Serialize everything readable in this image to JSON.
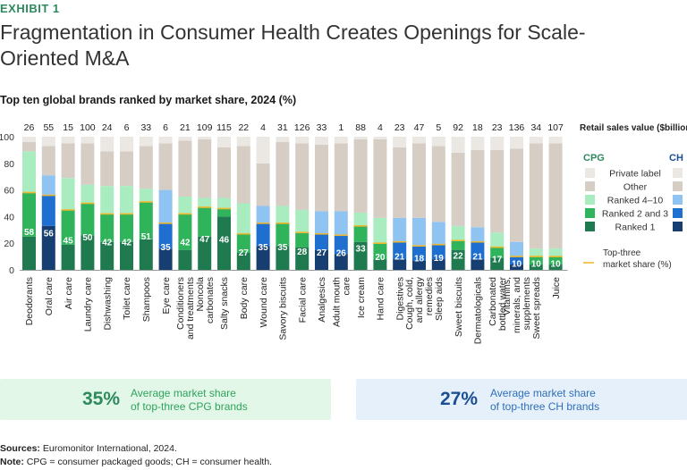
{
  "exhibit": "EXHIBIT 1",
  "title": "Fragmentation in Consumer Health Creates Openings for Scale-Oriented M&A",
  "subtitle": "Top ten global brands ranked by market share, 2024 (%)",
  "colors": {
    "private_label": "#ebe8e3",
    "other": "#d6cdc5",
    "cpg_r410": "#a9ecbf",
    "cpg_r23": "#2fb45c",
    "cpg_r1": "#1f7a4f",
    "ch_r410": "#8fc3f2",
    "ch_r23": "#1e6fd0",
    "ch_r1": "#173e71",
    "top3_line": "#f0b82d"
  },
  "chart_data": {
    "type": "bar",
    "stacked": true,
    "ylim": [
      0,
      100
    ],
    "yticks": [
      0,
      20,
      40,
      60,
      80,
      100
    ],
    "retail_label": "Retail sales value ($billions)",
    "categories": [
      "Deodorants",
      "Oral care",
      "Air care",
      "Laundry care",
      "Dishwashing",
      "Toilet care",
      "Shampoos",
      "Eye care",
      "Conditioners and treatments",
      "Noncola carbonates",
      "Salty snacks",
      "Body care",
      "Wound care",
      "Savory biscuits",
      "Facial care",
      "Analgesics",
      "Adult mouth care",
      "Ice cream",
      "Hand care",
      "Digestives",
      "Cough, cold, and allergy remedies",
      "Sleep aids",
      "Sweet biscuits",
      "Dermatologicals",
      "Carbonated bottled water",
      "Vitamins, minerals, and supplements",
      "Sweet spreads",
      "Juice"
    ],
    "group": [
      "CPG",
      "CH",
      "CPG",
      "CPG",
      "CPG",
      "CPG",
      "CPG",
      "CH",
      "CPG",
      "CPG",
      "CPG",
      "CPG",
      "CH",
      "CPG",
      "CPG",
      "CH",
      "CH",
      "CPG",
      "CPG",
      "CH",
      "CH",
      "CH",
      "CPG",
      "CH",
      "CPG",
      "CH",
      "CPG",
      "CPG"
    ],
    "retail_sales": [
      26,
      55,
      15,
      100,
      24,
      6,
      33,
      6,
      21,
      109,
      115,
      22,
      4,
      31,
      126,
      33,
      1,
      88,
      4,
      23,
      47,
      5,
      92,
      18,
      23,
      136,
      34,
      107
    ],
    "top3_share": [
      58,
      56,
      45,
      50,
      42,
      42,
      51,
      35,
      42,
      47,
      46,
      27,
      35,
      35,
      28,
      27,
      26,
      33,
      20,
      21,
      18,
      19,
      22,
      21,
      17,
      10,
      10,
      10
    ],
    "series": [
      {
        "name": "Ranked 1",
        "values": [
          25,
          33,
          19,
          26,
          21,
          21,
          23,
          16,
          15,
          25,
          40,
          13,
          18,
          18,
          17,
          15,
          12,
          21,
          8,
          8,
          7,
          8,
          15,
          8,
          9,
          4,
          4,
          4
        ]
      },
      {
        "name": "Ranked 2 and 3",
        "values": [
          33,
          23,
          26,
          24,
          21,
          21,
          28,
          19,
          27,
          22,
          6,
          14,
          17,
          17,
          11,
          12,
          14,
          12,
          12,
          13,
          11,
          11,
          7,
          13,
          8,
          6,
          6,
          6
        ]
      },
      {
        "name": "Ranked 4–10",
        "values": [
          31,
          15,
          24,
          14,
          21,
          21,
          10,
          25,
          13,
          7,
          8,
          23,
          13,
          13,
          17,
          17,
          18,
          10,
          19,
          18,
          21,
          17,
          11,
          11,
          11,
          11,
          6,
          6
        ]
      },
      {
        "name": "Other",
        "values": [
          7,
          22,
          26,
          31,
          26,
          26,
          32,
          35,
          42,
          44,
          38,
          43,
          32,
          48,
          50,
          50,
          51,
          55,
          59,
          53,
          56,
          57,
          55,
          58,
          62,
          70,
          79,
          79
        ]
      },
      {
        "name": "Private label",
        "values": [
          4,
          7,
          5,
          5,
          11,
          11,
          7,
          5,
          3,
          2,
          8,
          7,
          20,
          4,
          5,
          6,
          5,
          2,
          2,
          8,
          5,
          7,
          12,
          10,
          10,
          9,
          5,
          5
        ]
      }
    ],
    "legend": {
      "cpg_header": "CPG",
      "ch_header": "CH",
      "items": [
        "Private label",
        "Other",
        "Ranked 4–10",
        "Ranked 2 and 3",
        "Ranked 1"
      ],
      "line_label_1": "Top-three",
      "line_label_2": "market share (%)"
    }
  },
  "summary": {
    "cpg_value": "35%",
    "cpg_text_1": "Average market share",
    "cpg_text_2": "of top-three CPG brands",
    "ch_value": "27%",
    "ch_text_1": "Average market share",
    "ch_text_2": "of top-three CH brands"
  },
  "footer": {
    "sources_label": "Sources:",
    "sources_text": "Euromonitor International, 2024.",
    "note_label": "Note:",
    "note_text": "CPG = consumer packaged goods; CH = consumer health."
  }
}
